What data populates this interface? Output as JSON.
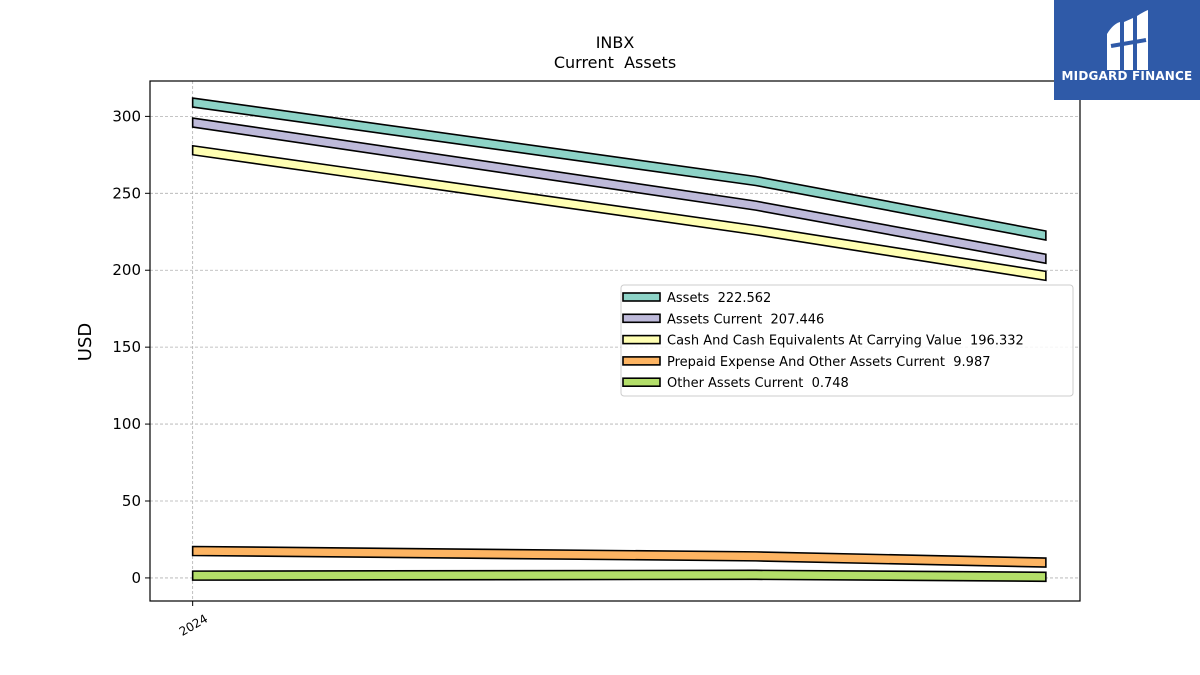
{
  "logo": {
    "text": "MIDGARD FINANCE",
    "background": "#2f5aa8"
  },
  "chart_data": {
    "type": "line",
    "title": "INBX",
    "subtitle": "Current  Assets",
    "xlabel": "",
    "ylabel": "USD",
    "x_ticks": [
      {
        "x": 0,
        "label": "2024"
      }
    ],
    "x": [
      0,
      0.66,
      1.0
    ],
    "xlim": [
      -0.05,
      1.04
    ],
    "ylim": [
      -15,
      323
    ],
    "yticks": [
      0,
      50,
      100,
      150,
      200,
      250,
      300
    ],
    "grid": true,
    "legend_position": "center-right",
    "series": [
      {
        "name": "Assets",
        "legend_label": "Assets  222.562",
        "values": [
          309,
          258,
          222.562
        ],
        "color": "#8dd3c7"
      },
      {
        "name": "Assets Current",
        "legend_label": "Assets Current  207.446",
        "values": [
          296,
          242,
          207.446
        ],
        "color": "#bebada"
      },
      {
        "name": "Cash And Cash Equivalents At Carrying Value",
        "legend_label": "Cash And Cash Equivalents At Carrying Value  196.332",
        "values": [
          278,
          226,
          196.332
        ],
        "color": "#ffffb3"
      },
      {
        "name": "Prepaid Expense And Other Assets Current",
        "legend_label": "Prepaid Expense And Other Assets Current  9.987",
        "values": [
          17.5,
          14,
          9.987
        ],
        "color": "#fdb462"
      },
      {
        "name": "Other Assets Current",
        "legend_label": "Other Assets Current  0.748",
        "values": [
          1.5,
          2,
          0.748
        ],
        "color": "#b3de69"
      }
    ]
  }
}
